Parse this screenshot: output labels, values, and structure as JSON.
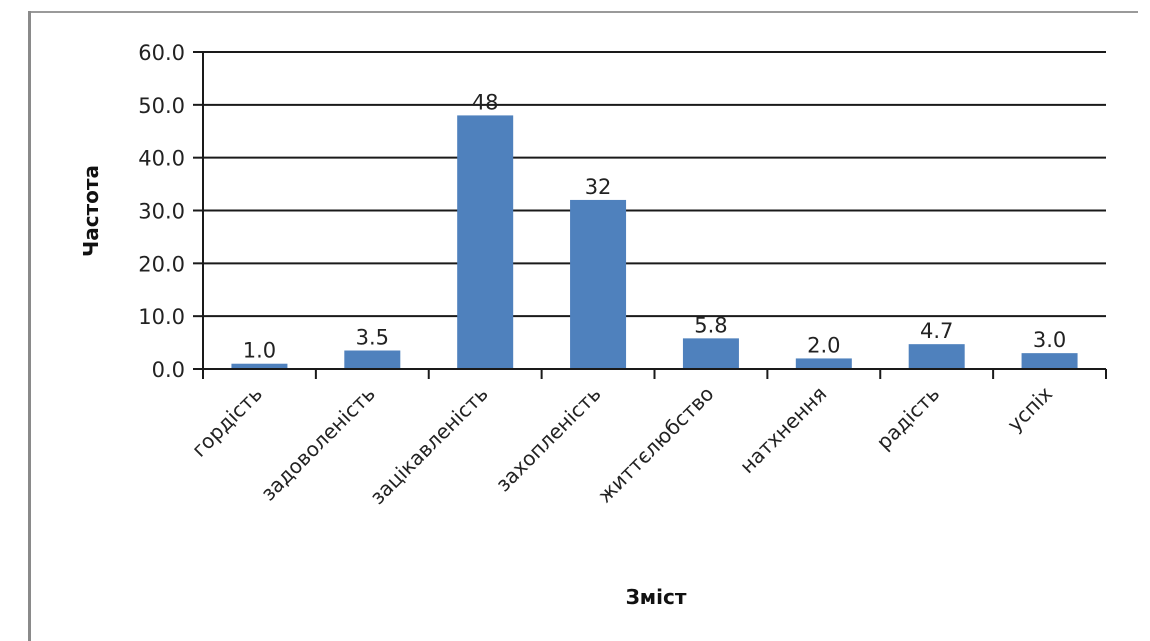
{
  "chart_data": {
    "type": "bar",
    "categories": [
      "гордість",
      "задоволеність",
      "зацікавленість",
      "захопленість",
      "життєлюбство",
      "натхнення",
      "радість",
      "успіх"
    ],
    "values": [
      1.0,
      3.5,
      48,
      32,
      5.8,
      2.0,
      4.7,
      3.0
    ],
    "data_labels": [
      "1.0",
      "3.5",
      "48",
      "32",
      "5.8",
      "2.0",
      "4.7",
      "3.0"
    ],
    "yticks": [
      "0.0",
      "10.0",
      "20.0",
      "30.0",
      "40.0",
      "50.0",
      "60.0"
    ],
    "xlabel": "Зміст",
    "ylabel": "Частота",
    "ylim": [
      0,
      60
    ],
    "grid": true,
    "legend": "none",
    "bar_color": "#4f81bd"
  }
}
